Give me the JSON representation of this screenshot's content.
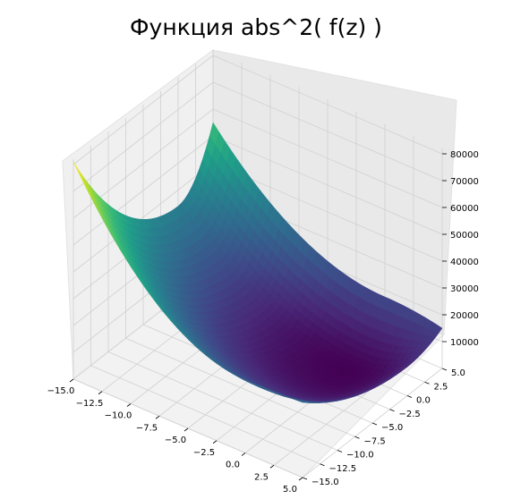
{
  "chart_data": {
    "type": "surface3d",
    "title": "Функция abs^2( f(z) )",
    "xlabel": "",
    "ylabel": "",
    "zlabel": "",
    "x_range": [
      -15,
      5
    ],
    "y_range": [
      -15,
      5
    ],
    "z_range": [
      0,
      82000
    ],
    "x_ticks": [
      "−15.0",
      "−12.5",
      "−10.0",
      "−7.5",
      "−5.0",
      "−2.5",
      "0.0",
      "2.5",
      "5.0"
    ],
    "y_ticks": [
      "−15.0",
      "−12.5",
      "−10.0",
      "−7.5",
      "−5.0",
      "−2.5",
      "0.0",
      "2.5",
      "5.0"
    ],
    "z_ticks": [
      "10000",
      "20000",
      "30000",
      "40000",
      "50000",
      "60000",
      "70000",
      "80000"
    ],
    "corner_values": {
      "x_min_y_min": 81000,
      "x_max_y_min": 28000,
      "x_min_y_max": 55000,
      "x_max_y_max": 15000,
      "minimum": 0
    },
    "colormap": "viridis",
    "grid": true
  }
}
